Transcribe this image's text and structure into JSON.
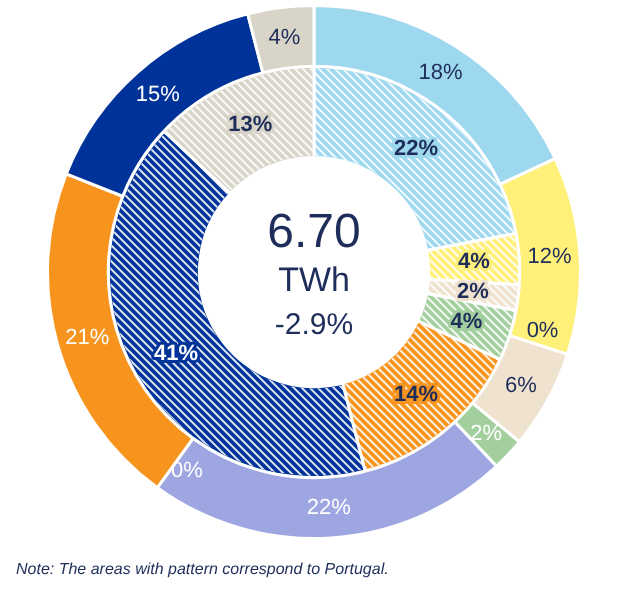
{
  "chart_data": {
    "type": "donut",
    "categories": [
      null,
      null,
      null,
      null,
      null,
      null,
      null,
      null,
      null,
      null
    ],
    "series": [
      {
        "values": [
          18,
          12,
          0,
          6,
          2,
          22,
          0,
          21,
          15,
          4
        ],
        "colors": [
          "#9dd8ee",
          "#fff07a",
          "#e8c800",
          "#efe3d0",
          "#a3cf9f",
          "#9ea6e2",
          "#f7941d",
          "#f7941d",
          "#003399",
          "#d8d4c8"
        ],
        "value_labels": [
          "18%",
          "12%",
          "0%",
          "6%",
          "2%",
          "22%",
          "0%",
          "21%",
          "15%",
          "4%"
        ]
      },
      {
        "values": [
          22,
          4,
          2,
          4,
          14,
          41,
          13,
          null,
          null,
          null
        ],
        "colors": [
          "#9dd8ee",
          "#fff07a",
          "#efe3d0",
          "#a3cf9f",
          "#f7941d",
          "#003399",
          "#d8d4c8",
          "#ffffff",
          "#ffffff",
          "#ffffff"
        ],
        "value_labels": [
          "22%",
          "4%",
          "2%",
          "4%",
          "14%",
          "41%",
          "13%",
          null,
          null,
          null
        ]
      }
    ],
    "annotations": [
      "6.70",
      "TWh",
      "-2.9%",
      "Note: The  areas with pattern correspond  to Portugal."
    ]
  }
}
